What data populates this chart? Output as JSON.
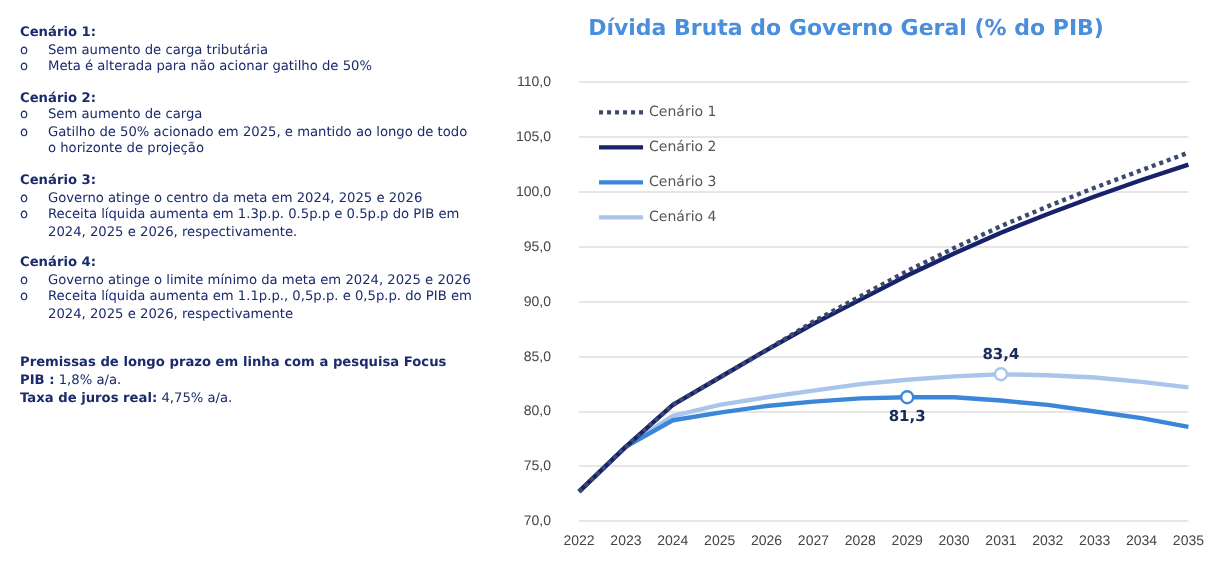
{
  "chart_data": {
    "type": "line",
    "title": "Dívida Bruta do Governo Geral (% do PIB)",
    "categories": [
      "2022",
      "2023",
      "2024",
      "2025",
      "2026",
      "2027",
      "2028",
      "2029",
      "2030",
      "2031",
      "2032",
      "2033",
      "2034",
      "2035"
    ],
    "series": [
      {
        "name": "Cenário 1",
        "color": "#3d4a70",
        "line_style": "dotted",
        "values": [
          72.7,
          76.8,
          80.6,
          83.1,
          85.6,
          88.2,
          90.5,
          92.8,
          94.9,
          96.9,
          98.7,
          100.4,
          102.0,
          103.6
        ]
      },
      {
        "name": "Cenário 2",
        "color": "#18226b",
        "line_style": "solid",
        "values": [
          72.7,
          76.8,
          80.6,
          83.1,
          85.6,
          88.0,
          90.2,
          92.4,
          94.4,
          96.3,
          98.0,
          99.6,
          101.1,
          102.5
        ]
      },
      {
        "name": "Cenário 3",
        "color": "#3a87d9",
        "line_style": "solid",
        "values": [
          72.7,
          76.8,
          79.2,
          79.9,
          80.5,
          80.9,
          81.2,
          81.3,
          81.3,
          81.0,
          80.6,
          80.0,
          79.4,
          78.6
        ],
        "value_labels": [
          null,
          null,
          null,
          null,
          null,
          null,
          null,
          "81,3",
          null,
          null,
          null,
          null,
          null,
          null
        ]
      },
      {
        "name": "Cenário 4",
        "color": "#a9c5ea",
        "line_style": "solid",
        "values": [
          72.7,
          76.8,
          79.6,
          80.6,
          81.3,
          81.9,
          82.5,
          82.9,
          83.2,
          83.4,
          83.3,
          83.1,
          82.7,
          82.2
        ],
        "value_labels": [
          null,
          null,
          null,
          null,
          null,
          null,
          null,
          null,
          null,
          "83,4",
          null,
          null,
          null,
          null
        ]
      }
    ],
    "ylim": [
      70,
      110
    ],
    "yticks": [
      {
        "value": 70,
        "label": "70,0"
      },
      {
        "value": 75,
        "label": "75,0"
      },
      {
        "value": 80,
        "label": "80,0"
      },
      {
        "value": 85,
        "label": "85,0"
      },
      {
        "value": 90,
        "label": "90,0"
      },
      {
        "value": 95,
        "label": "95,0"
      },
      {
        "value": 100,
        "label": "100,0"
      },
      {
        "value": 105,
        "label": "105,0"
      },
      {
        "value": 110,
        "label": "110,0"
      }
    ],
    "grid": "y",
    "legend": "top left",
    "marker": "none",
    "annotations": [
      "Cenário 1:\no\tSem aumento de carga tributária\no\tMeta é alterada para não acionar gatilho de 50%",
      "Cenário 2:\no\tSem aumento de carga\no\tGatilho de 50% acionado em 2025, e mantido ao longo de todo o horizonte de projeção",
      "Cenário 3:\no\tGoverno atinge o centro da meta em 2024, 2025 e 2026\no\tReceita líquida aumenta em 1.3p.p. 0.5p.p e 0.5p.p do PIB em 2024, 2025 e 2026, respectivamente.",
      "Cenário 4:\no\tGoverno atinge o limite mínimo da meta em 2024, 2025 e 2026\no\tReceita líquida aumenta em 1.1p.p., 0,5p.p. e 0,5p.p. do PIB em 2024, 2025 e 2026, respectivamente",
      "Premissas de longo prazo em linha com a pesquisa Focus\nPIB : 1,8% a/a.\nTaxa de juros real: 4,75% a/a."
    ]
  }
}
